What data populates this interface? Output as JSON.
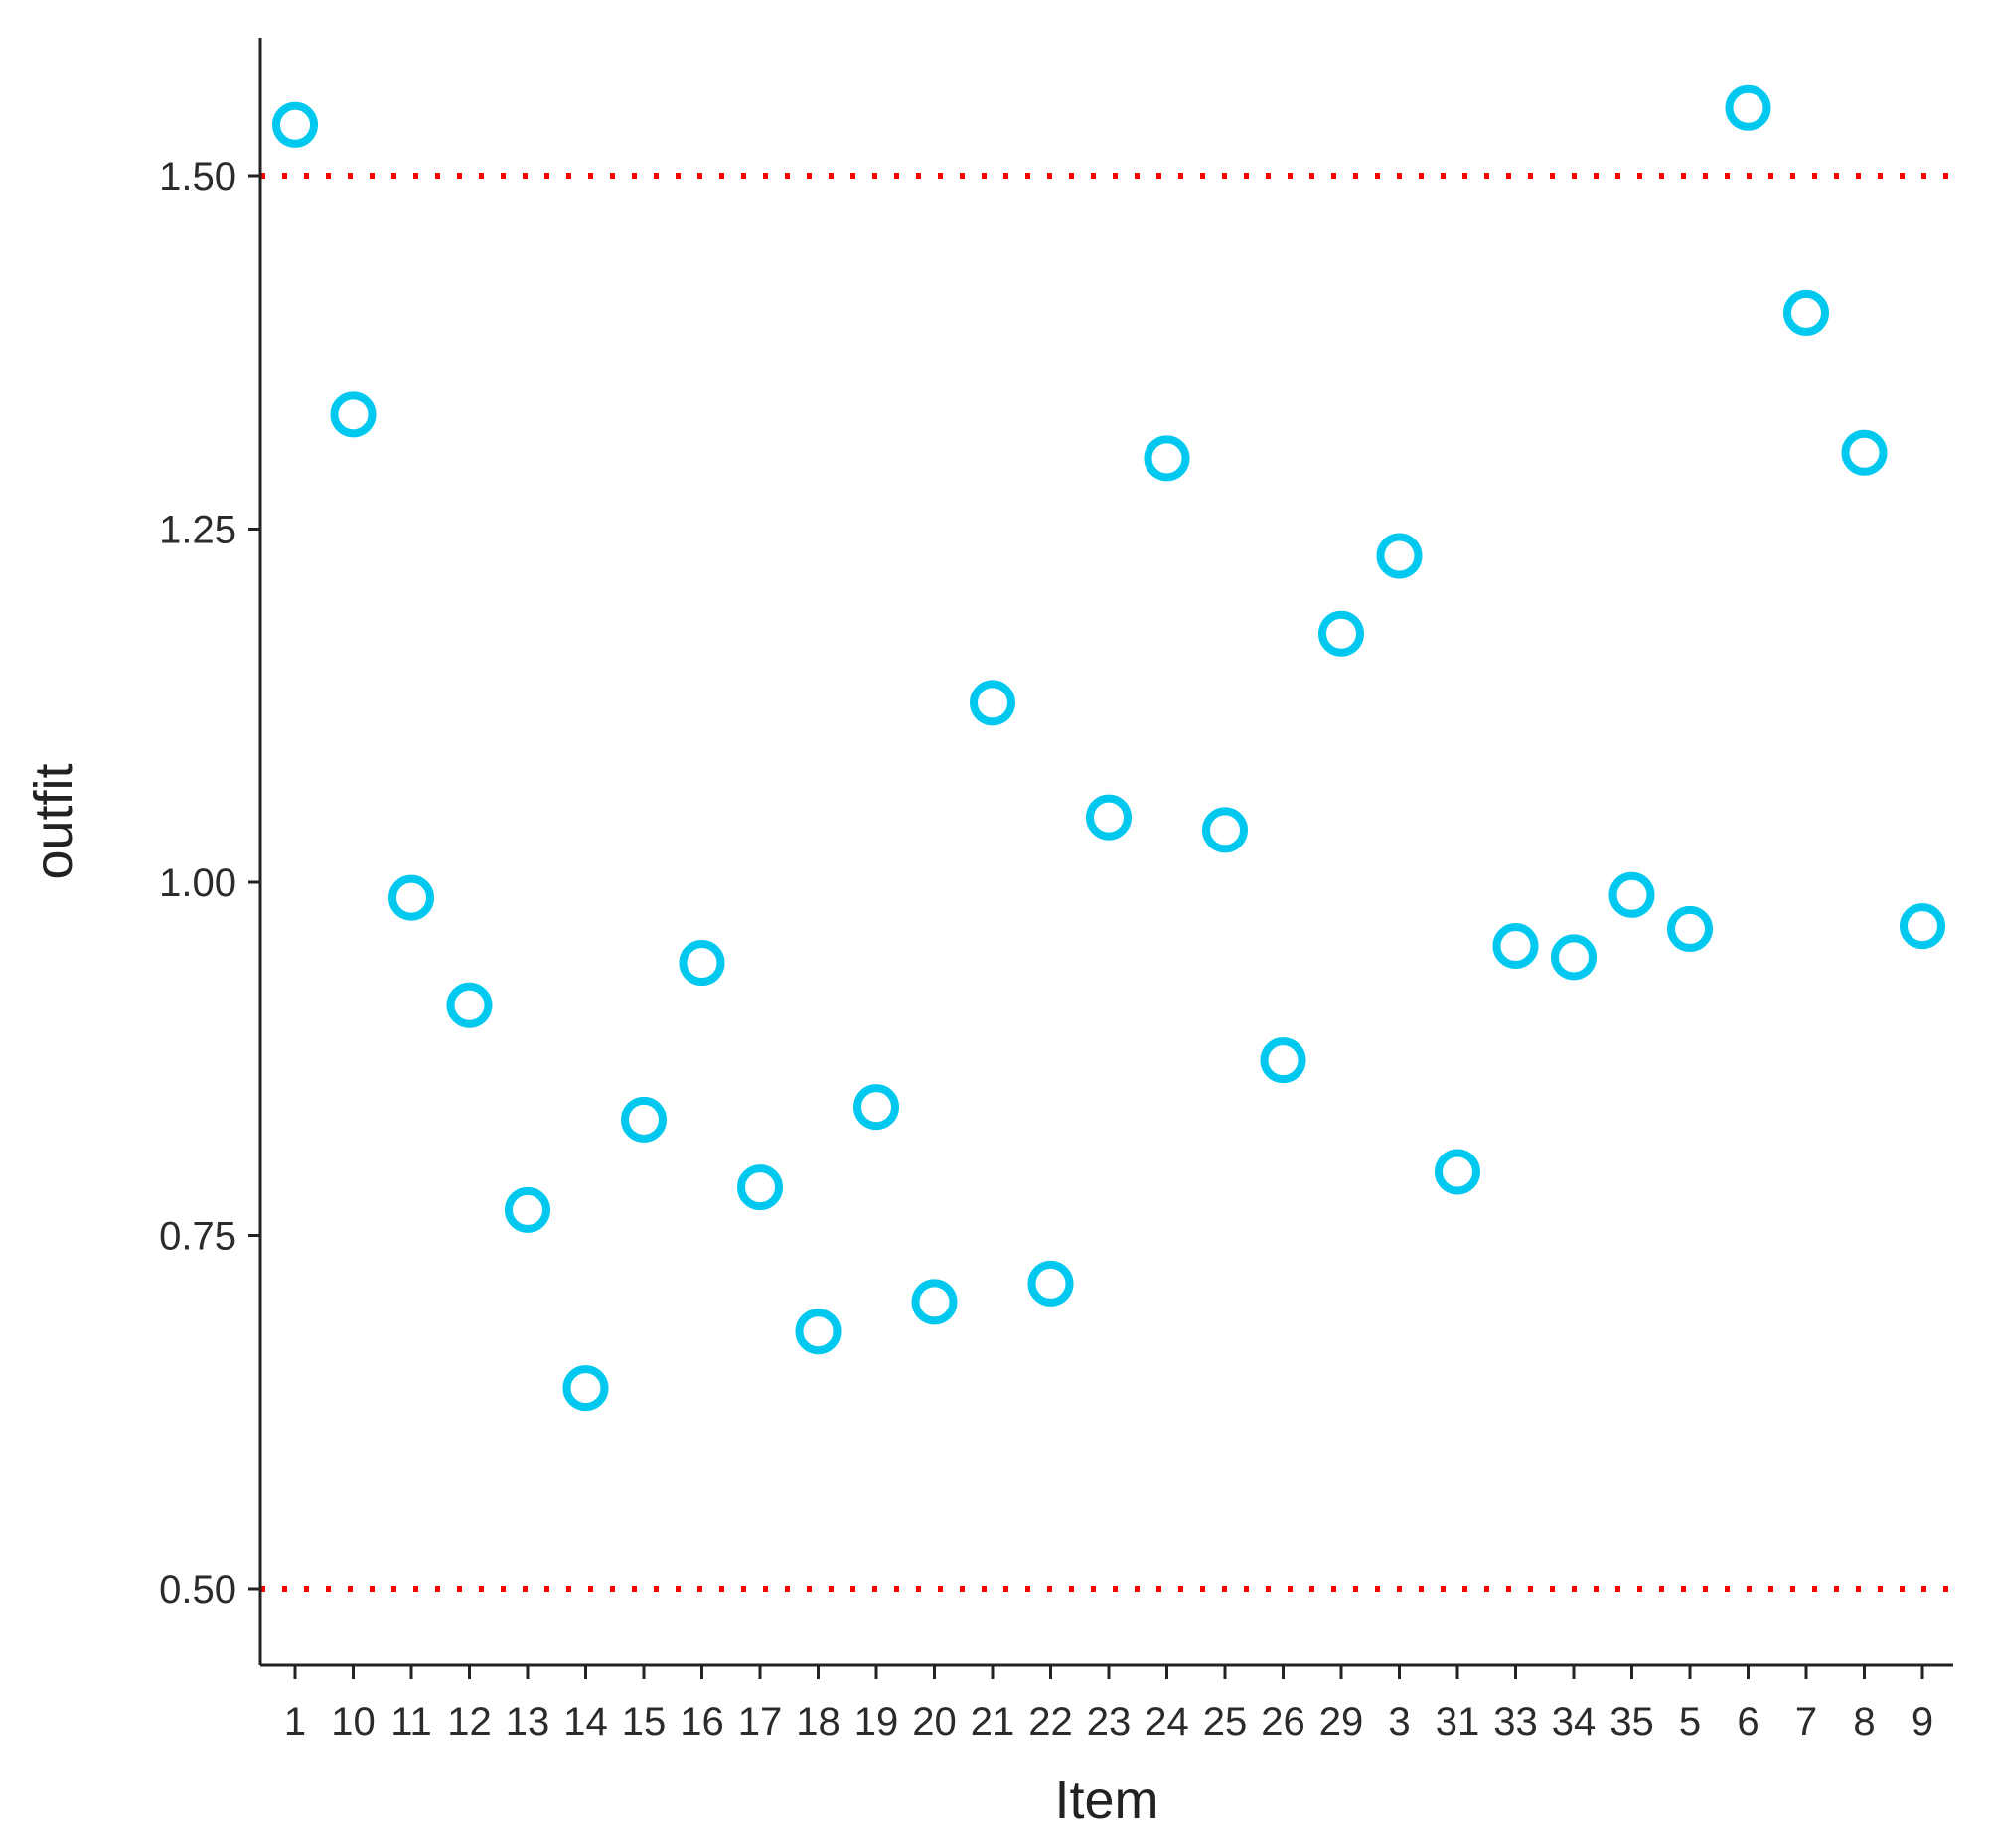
{
  "chart_data": {
    "type": "scatter",
    "title": "",
    "xlabel": "Item",
    "ylabel": "outfit",
    "categories": [
      "1",
      "10",
      "11",
      "12",
      "13",
      "14",
      "15",
      "16",
      "17",
      "18",
      "19",
      "20",
      "21",
      "22",
      "23",
      "24",
      "25",
      "26",
      "29",
      "3",
      "31",
      "33",
      "34",
      "35",
      "5",
      "6",
      "7",
      "8",
      "9"
    ],
    "values": [
      1.536,
      1.331,
      0.989,
      0.913,
      0.768,
      0.642,
      0.832,
      0.943,
      0.784,
      0.682,
      0.841,
      0.703,
      1.127,
      0.716,
      1.046,
      1.3,
      1.037,
      0.874,
      1.176,
      1.231,
      0.795,
      0.955,
      0.947,
      0.991,
      0.967,
      1.548,
      1.403,
      1.304,
      0.969
    ],
    "ylim": [
      0.45,
      1.595
    ],
    "yticks": [
      0.5,
      0.75,
      1.0,
      1.25,
      1.5
    ],
    "ytick_labels": [
      "0.50",
      "0.75",
      "1.00",
      "1.25",
      "1.50"
    ],
    "reference_lines": [
      1.5,
      0.5
    ],
    "grid": false,
    "legend": "none",
    "colors": {
      "points": "#00c8ee",
      "reference_line": "#ff0000",
      "axis": "#222222"
    }
  }
}
